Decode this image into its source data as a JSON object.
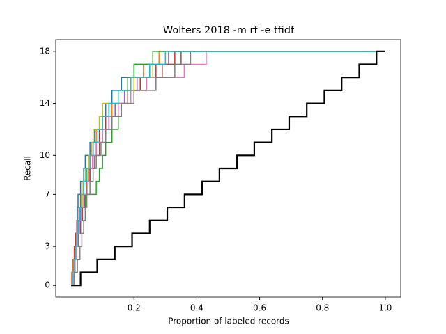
{
  "chart_data": {
    "type": "step",
    "title": "Wolters 2018 -m rf -e tfidf",
    "x_label": "Proportion of labeled records",
    "y_label": "Recall",
    "xlim": [
      -0.049,
      1.049
    ],
    "ylim": [
      -0.9,
      18.9
    ],
    "xticks": [
      0.2,
      0.4,
      0.6,
      0.8,
      {
        "value": 1,
        "label": "1.0"
      }
    ],
    "yticks": [
      0,
      3,
      7,
      10,
      14,
      18
    ],
    "grid": false,
    "drawstyle": "steps-post",
    "series": [
      {
        "color": "#1f77b4",
        "x": [
          0,
          0.003,
          0.008,
          0.012,
          0.015,
          0.018,
          0.02,
          0.022,
          0.03,
          0.04,
          0.045,
          0.06,
          0.075,
          0.09,
          0.11,
          0.13,
          0.16,
          0.2,
          0.28,
          1.0
        ],
        "values": [
          0,
          1,
          2,
          3,
          4,
          5,
          6,
          7,
          8,
          9,
          10,
          11,
          12,
          13,
          14,
          15,
          16,
          17,
          18,
          18
        ]
      },
      {
        "color": "#ff7f0e",
        "x": [
          0,
          0.004,
          0.01,
          0.015,
          0.02,
          0.024,
          0.028,
          0.035,
          0.04,
          0.055,
          0.06,
          0.07,
          0.08,
          0.1,
          0.13,
          0.15,
          0.19,
          0.23,
          0.28,
          1.0
        ],
        "values": [
          0,
          1,
          2,
          3,
          4,
          5,
          6,
          7,
          8,
          9,
          10,
          11,
          12,
          13,
          14,
          15,
          16,
          17,
          18,
          18
        ]
      },
      {
        "color": "#2ca02c",
        "x": [
          0,
          0.005,
          0.012,
          0.018,
          0.022,
          0.03,
          0.035,
          0.045,
          0.08,
          0.09,
          0.1,
          0.11,
          0.13,
          0.15,
          0.16,
          0.17,
          0.18,
          0.2,
          0.26,
          1.0
        ],
        "values": [
          0,
          1,
          2,
          3,
          4,
          5,
          6,
          7,
          8,
          9,
          10,
          11,
          12,
          13,
          14,
          15,
          16,
          17,
          18,
          18
        ]
      },
      {
        "color": "#d62728",
        "x": [
          0,
          0.002,
          0.006,
          0.01,
          0.015,
          0.02,
          0.025,
          0.03,
          0.04,
          0.05,
          0.06,
          0.07,
          0.09,
          0.11,
          0.14,
          0.17,
          0.22,
          0.27,
          0.33,
          1.0
        ],
        "values": [
          0,
          1,
          2,
          3,
          4,
          5,
          6,
          7,
          8,
          9,
          10,
          11,
          12,
          13,
          14,
          15,
          16,
          17,
          18,
          18
        ]
      },
      {
        "color": "#9467bd",
        "x": [
          0,
          0.004,
          0.009,
          0.014,
          0.02,
          0.025,
          0.03,
          0.04,
          0.05,
          0.06,
          0.07,
          0.08,
          0.1,
          0.12,
          0.14,
          0.17,
          0.21,
          0.25,
          0.31,
          1.0
        ],
        "values": [
          0,
          1,
          2,
          3,
          4,
          5,
          6,
          7,
          8,
          9,
          10,
          11,
          12,
          13,
          14,
          15,
          16,
          17,
          18,
          18
        ]
      },
      {
        "color": "#8c564b",
        "x": [
          0,
          0.006,
          0.012,
          0.018,
          0.024,
          0.03,
          0.036,
          0.042,
          0.05,
          0.06,
          0.075,
          0.09,
          0.11,
          0.13,
          0.15,
          0.18,
          0.24,
          0.29,
          0.35,
          1.0
        ],
        "values": [
          0,
          1,
          2,
          3,
          4,
          5,
          6,
          7,
          8,
          9,
          10,
          11,
          12,
          13,
          14,
          15,
          16,
          17,
          18,
          18
        ]
      },
      {
        "color": "#e377c2",
        "x": [
          0,
          0.005,
          0.011,
          0.016,
          0.021,
          0.027,
          0.033,
          0.04,
          0.048,
          0.057,
          0.068,
          0.08,
          0.1,
          0.12,
          0.15,
          0.19,
          0.24,
          0.36,
          0.43,
          1.0
        ],
        "values": [
          0,
          1,
          2,
          3,
          4,
          5,
          6,
          7,
          8,
          9,
          10,
          11,
          12,
          13,
          14,
          15,
          16,
          17,
          18,
          18
        ]
      },
      {
        "color": "#7f7f7f",
        "x": [
          0,
          0.01,
          0.02,
          0.028,
          0.034,
          0.04,
          0.045,
          0.05,
          0.06,
          0.07,
          0.08,
          0.095,
          0.11,
          0.13,
          0.16,
          0.2,
          0.27,
          0.33,
          0.38,
          1.0
        ],
        "values": [
          0,
          1,
          2,
          3,
          4,
          5,
          6,
          7,
          8,
          9,
          10,
          11,
          12,
          13,
          14,
          15,
          16,
          17,
          18,
          18
        ]
      },
      {
        "color": "#bcbd22",
        "x": [
          0,
          0.003,
          0.007,
          0.012,
          0.017,
          0.022,
          0.027,
          0.032,
          0.038,
          0.045,
          0.055,
          0.065,
          0.07,
          0.09,
          0.1,
          0.15,
          0.2,
          0.26,
          0.3,
          1.0
        ],
        "values": [
          0,
          1,
          2,
          3,
          4,
          5,
          6,
          7,
          8,
          9,
          10,
          11,
          12,
          13,
          14,
          15,
          16,
          17,
          18,
          18
        ]
      },
      {
        "color": "#17becf",
        "x": [
          0,
          0.004,
          0.008,
          0.013,
          0.018,
          0.023,
          0.028,
          0.034,
          0.04,
          0.05,
          0.06,
          0.07,
          0.085,
          0.1,
          0.12,
          0.15,
          0.19,
          0.25,
          0.3,
          1.0
        ],
        "values": [
          0,
          1,
          2,
          3,
          4,
          5,
          6,
          7,
          8,
          9,
          10,
          11,
          12,
          13,
          14,
          15,
          16,
          17,
          18,
          18
        ]
      },
      {
        "color": "#000000",
        "x": [
          0,
          0.03,
          0.083,
          0.139,
          0.194,
          0.25,
          0.306,
          0.361,
          0.417,
          0.472,
          0.528,
          0.583,
          0.639,
          0.694,
          0.75,
          0.806,
          0.861,
          0.917,
          0.972,
          1.0
        ],
        "values": [
          0,
          1,
          2,
          3,
          4,
          5,
          6,
          7,
          8,
          9,
          10,
          11,
          12,
          13,
          14,
          15,
          16,
          17,
          18,
          18
        ]
      }
    ]
  }
}
